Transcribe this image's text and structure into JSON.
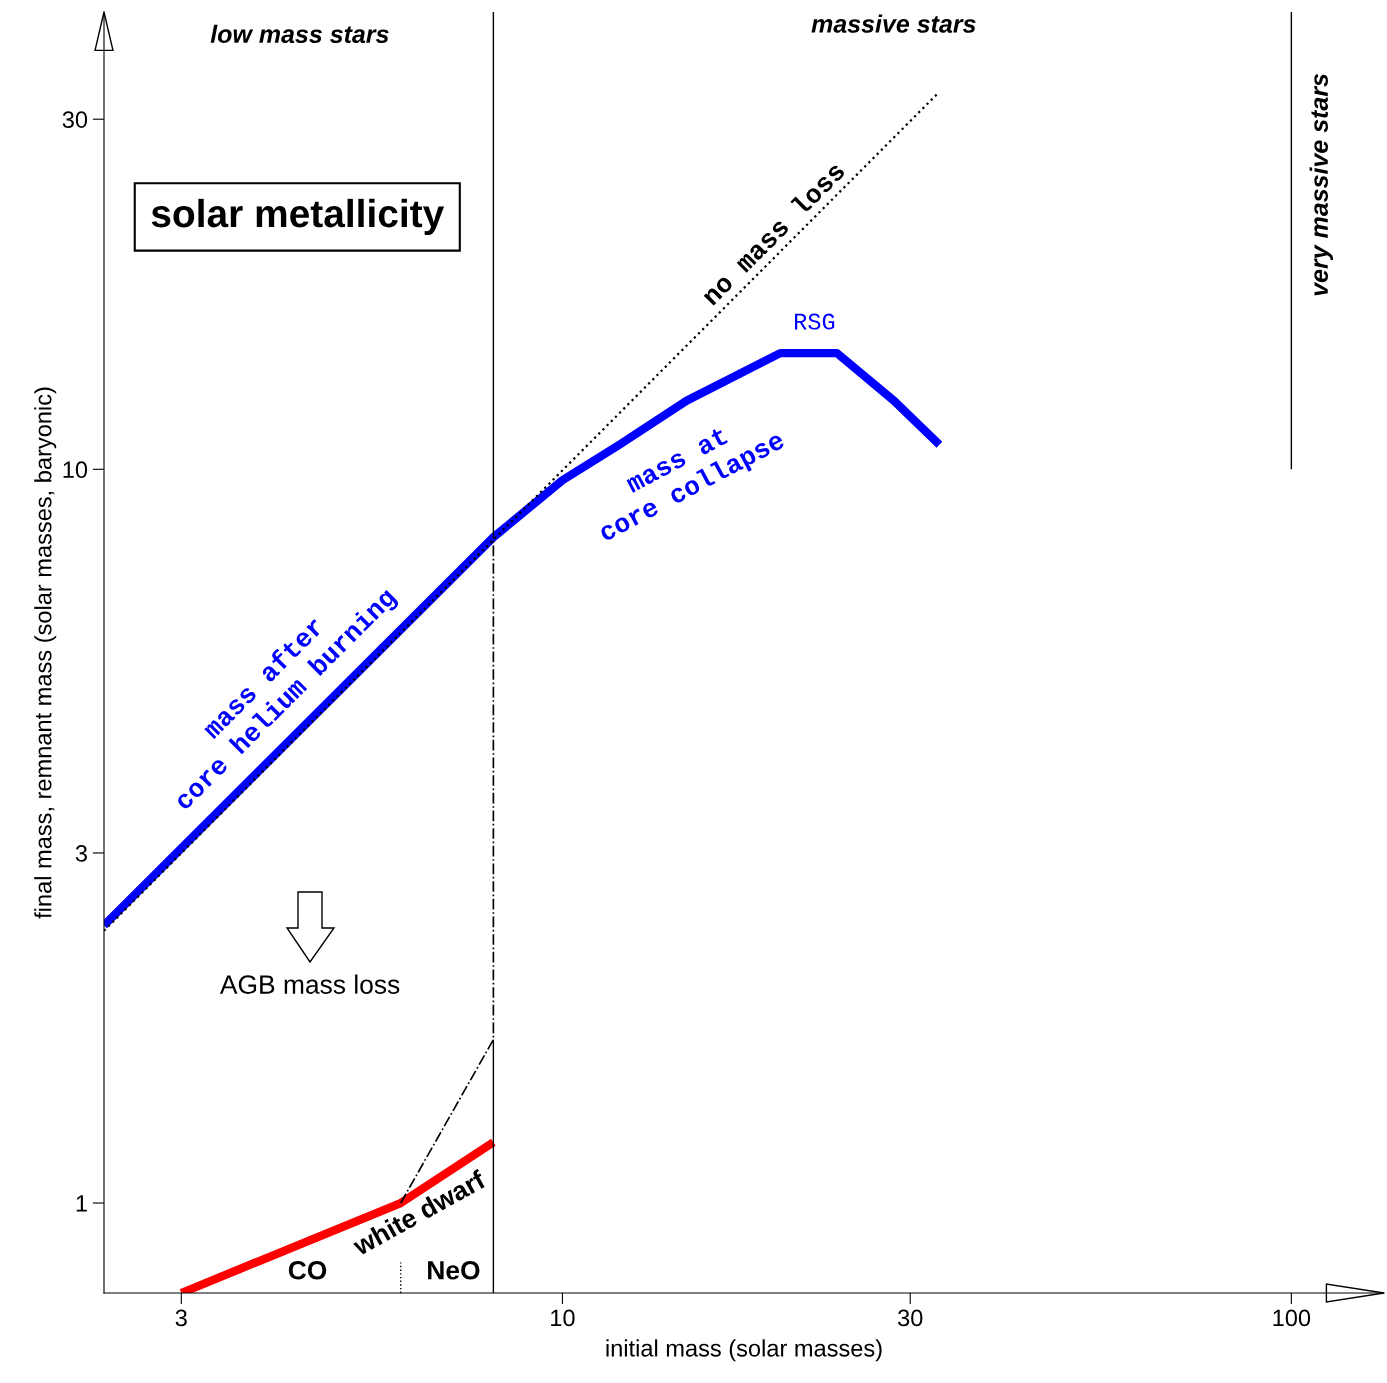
{
  "chart_data": {
    "type": "line",
    "xlabel": "initial mass (solar masses)",
    "ylabel": "final mass, remnant mass (solar masses, baryonic)",
    "log": "xy",
    "grid": false,
    "marker": "none",
    "xlim": [
      2.35,
      134
    ],
    "ylim": [
      0.754,
      42
    ],
    "xticks": [
      3,
      10,
      30,
      100
    ],
    "yticks": [
      1,
      3,
      10,
      30
    ],
    "series": [
      {
        "color": "#0000ff",
        "line_style": "solid",
        "x": [
          2.35,
          8.04,
          10,
          11.97,
          14.8,
          19.9,
          23.8,
          28.5,
          32.9
        ],
        "values": [
          2.39,
          8.08,
          9.66,
          10.8,
          12.4,
          14.4,
          14.4,
          12.4,
          10.8
        ]
      },
      {
        "color": "#000000",
        "line_style": "dotted",
        "x": [
          2.35,
          32.7
        ],
        "values": [
          2.35,
          32.5
        ]
      },
      {
        "color": "#ff0000",
        "line_style": "solid",
        "x": [
          3,
          6,
          8.04
        ],
        "values": [
          0.754,
          1,
          1.21
        ]
      },
      {
        "color": "#000000",
        "line_style": "dashdot",
        "x": [
          6,
          8.04,
          8.04
        ],
        "values": [
          1,
          1.67,
          8.08
        ]
      },
      {
        "color": "#000000",
        "line_style": "solid",
        "x": [
          8.04,
          8.04
        ],
        "values": [
          0.754,
          1.67
        ]
      },
      {
        "color": "#000000",
        "line_style": "solid",
        "x": [
          8.04,
          8.04
        ],
        "values": [
          8.08,
          42
        ]
      },
      {
        "color": "#000000",
        "line_style": "dotted",
        "x": [
          6,
          6
        ],
        "values": [
          0.754,
          0.83
        ]
      },
      {
        "color": "#000000",
        "line_style": "solid",
        "x": [
          100,
          100
        ],
        "values": [
          10,
          42
        ]
      }
    ],
    "annotations": [
      "low mass stars",
      "massive stars",
      "very massive stars",
      "solar metallicity",
      "no mass loss",
      "RSG",
      "mass at\ncore collapse",
      "mass after\ncore helium burning",
      "AGB mass loss",
      "white dwarf",
      "CO",
      "NeO"
    ]
  }
}
